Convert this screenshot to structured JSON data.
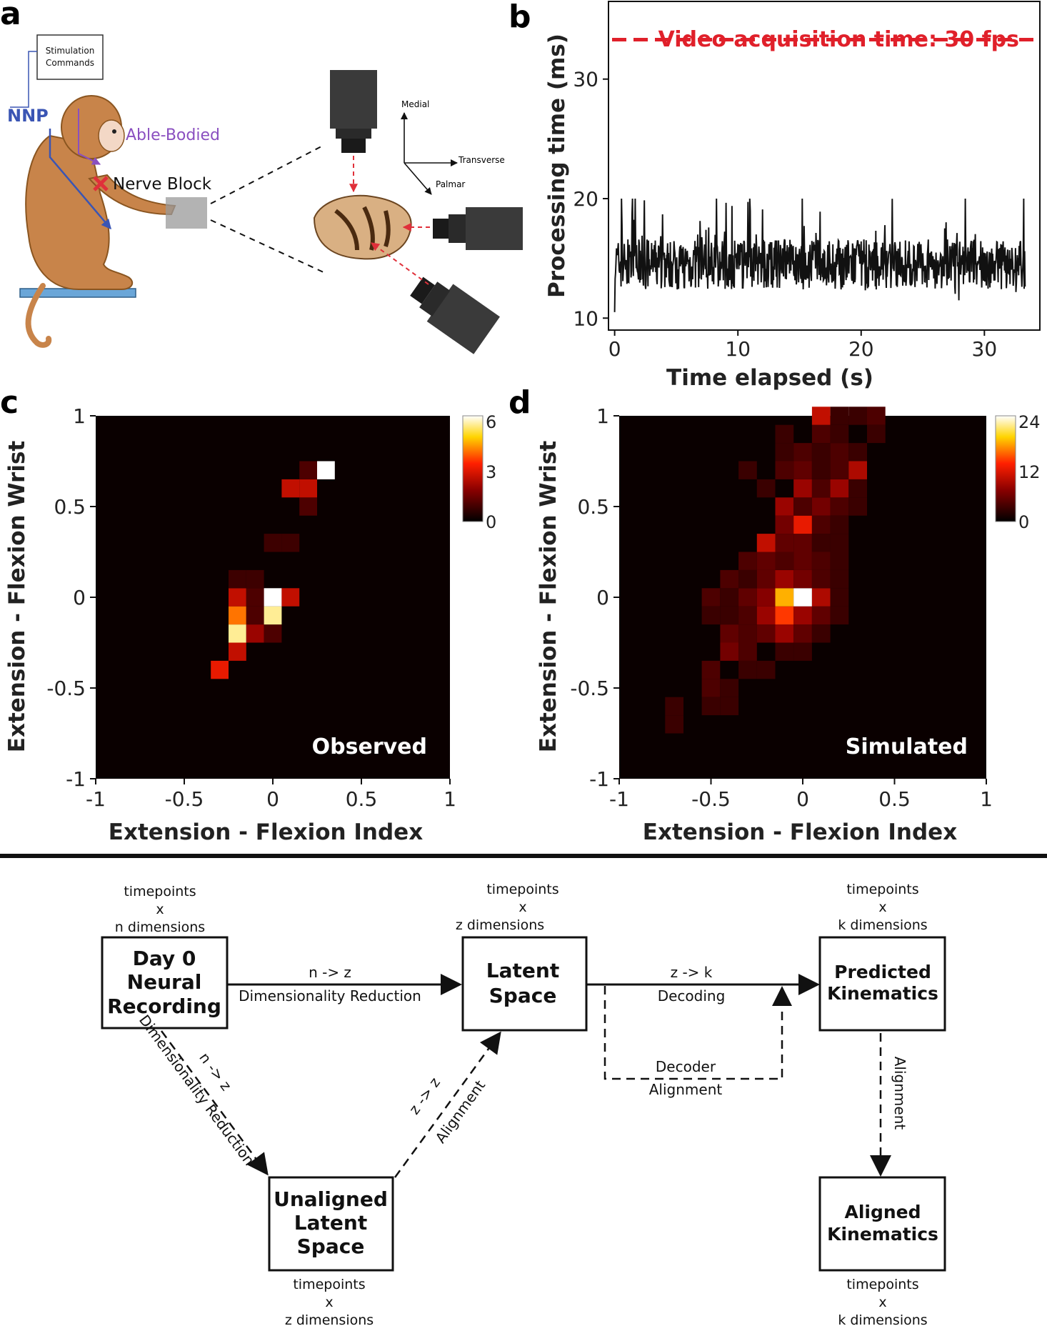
{
  "panel_labels": {
    "a": "a",
    "b": "b",
    "c": "c",
    "d": "d"
  },
  "panel_a": {
    "stim_box": [
      "Stimulation",
      "Commands"
    ],
    "nnp_label": "NNP",
    "able_bodied_label": "Able-Bodied",
    "nerve_block_label": "Nerve Block",
    "axis_medial": "Medial",
    "axis_transverse": "Transverse",
    "axis_palmar": "Palmar",
    "colors": {
      "nnp": "#3a55b4",
      "able_bodied": "#8a4fc0",
      "block": "#e0303a",
      "monkey": "#c8844a",
      "camera": "#3a3a3a"
    }
  },
  "chart_data": [
    {
      "type": "line",
      "panel": "b",
      "xlabel": "Time elapsed (s)",
      "ylabel": "Processing time (ms)",
      "xlim": [
        -0.5,
        34.5
      ],
      "ylim": [
        9,
        36.5
      ],
      "xticks": [
        0,
        10,
        20,
        30
      ],
      "yticks": [
        10,
        20,
        30
      ],
      "series": [
        {
          "color": "#111111",
          "x_range": [
            0,
            33.3
          ],
          "approx_mean": 14.5,
          "approx_range": [
            10.5,
            20
          ]
        }
      ],
      "reference_line": {
        "y": 33.3,
        "label": "Video acquisition time: 30 fps",
        "color": "#e0202a",
        "style": "dashed"
      }
    },
    {
      "type": "heatmap",
      "panel": "c",
      "annotation": "Observed",
      "xlabel": "Extension - Flexion Index",
      "ylabel": "Extension - Flexion Wrist",
      "xlim": [
        -1,
        1
      ],
      "ylim": [
        -1,
        1
      ],
      "xticks": [
        "-1",
        "-0.5",
        "0",
        "0.5",
        "1"
      ],
      "yticks": [
        "1",
        "0.5",
        "0",
        "-0.5",
        "-1"
      ],
      "colorbar": {
        "min": 0,
        "max": 6,
        "ticks": [
          "6",
          "3",
          "0"
        ]
      },
      "bin_size": 0.1,
      "cells": [
        {
          "x": -0.3,
          "y": -0.4,
          "v": 3
        },
        {
          "x": -0.2,
          "y": -0.3,
          "v": 2.5
        },
        {
          "x": -0.2,
          "y": -0.2,
          "v": 5.5
        },
        {
          "x": -0.1,
          "y": -0.2,
          "v": 2
        },
        {
          "x": 0.0,
          "y": -0.2,
          "v": 1
        },
        {
          "x": -0.2,
          "y": -0.1,
          "v": 4
        },
        {
          "x": -0.1,
          "y": -0.1,
          "v": 1
        },
        {
          "x": 0.0,
          "y": -0.1,
          "v": 5.5
        },
        {
          "x": -0.2,
          "y": 0.0,
          "v": 2.5
        },
        {
          "x": -0.1,
          "y": 0.0,
          "v": 1
        },
        {
          "x": 0.0,
          "y": 0.0,
          "v": 6
        },
        {
          "x": 0.1,
          "y": 0.0,
          "v": 2.5
        },
        {
          "x": -0.2,
          "y": 0.1,
          "v": 0.8
        },
        {
          "x": -0.1,
          "y": 0.1,
          "v": 0.8
        },
        {
          "x": 0.0,
          "y": 0.3,
          "v": 0.8
        },
        {
          "x": 0.1,
          "y": 0.3,
          "v": 0.8
        },
        {
          "x": 0.2,
          "y": 0.5,
          "v": 1
        },
        {
          "x": 0.1,
          "y": 0.6,
          "v": 2.5
        },
        {
          "x": 0.2,
          "y": 0.6,
          "v": 2.5
        },
        {
          "x": 0.2,
          "y": 0.7,
          "v": 1
        },
        {
          "x": 0.3,
          "y": 0.7,
          "v": 6
        }
      ]
    },
    {
      "type": "heatmap",
      "panel": "d",
      "annotation": "Simulated",
      "xlabel": "Extension - Flexion Index",
      "ylabel": "Extension - Flexion Wrist",
      "xlim": [
        -1,
        1
      ],
      "ylim": [
        -1,
        1
      ],
      "xticks": [
        "-1",
        "-0.5",
        "0",
        "0.5",
        "1"
      ],
      "yticks": [
        "1",
        "0.5",
        "0",
        "-0.5",
        "-1"
      ],
      "colorbar": {
        "min": 0,
        "max": 24,
        "ticks": [
          "24",
          "12",
          "0"
        ]
      },
      "bin_size": 0.1,
      "cells": [
        {
          "x": -0.7,
          "y": -0.7,
          "v": 3
        },
        {
          "x": -0.7,
          "y": -0.6,
          "v": 3
        },
        {
          "x": -0.5,
          "y": -0.6,
          "v": 3
        },
        {
          "x": -0.4,
          "y": -0.6,
          "v": 3
        },
        {
          "x": -0.5,
          "y": -0.5,
          "v": 4
        },
        {
          "x": -0.4,
          "y": -0.5,
          "v": 3
        },
        {
          "x": -0.5,
          "y": -0.4,
          "v": 4
        },
        {
          "x": -0.3,
          "y": -0.4,
          "v": 3
        },
        {
          "x": -0.2,
          "y": -0.4,
          "v": 3
        },
        {
          "x": -0.4,
          "y": -0.3,
          "v": 6
        },
        {
          "x": -0.3,
          "y": -0.3,
          "v": 4
        },
        {
          "x": -0.1,
          "y": -0.3,
          "v": 3
        },
        {
          "x": 0.0,
          "y": -0.3,
          "v": 3
        },
        {
          "x": -0.4,
          "y": -0.2,
          "v": 5
        },
        {
          "x": -0.3,
          "y": -0.2,
          "v": 4
        },
        {
          "x": -0.2,
          "y": -0.2,
          "v": 5
        },
        {
          "x": -0.1,
          "y": -0.2,
          "v": 8
        },
        {
          "x": 0.0,
          "y": -0.2,
          "v": 5
        },
        {
          "x": 0.1,
          "y": -0.2,
          "v": 3
        },
        {
          "x": -0.5,
          "y": -0.1,
          "v": 3
        },
        {
          "x": -0.4,
          "y": -0.1,
          "v": 3
        },
        {
          "x": -0.3,
          "y": -0.1,
          "v": 4
        },
        {
          "x": -0.2,
          "y": -0.1,
          "v": 8
        },
        {
          "x": -0.1,
          "y": -0.1,
          "v": 14
        },
        {
          "x": 0.0,
          "y": -0.1,
          "v": 8
        },
        {
          "x": 0.1,
          "y": -0.1,
          "v": 5
        },
        {
          "x": 0.2,
          "y": -0.1,
          "v": 3
        },
        {
          "x": -0.5,
          "y": 0.0,
          "v": 4
        },
        {
          "x": -0.4,
          "y": 0.0,
          "v": 3
        },
        {
          "x": -0.3,
          "y": 0.0,
          "v": 5
        },
        {
          "x": -0.2,
          "y": 0.0,
          "v": 7
        },
        {
          "x": -0.1,
          "y": 0.0,
          "v": 18
        },
        {
          "x": 0.0,
          "y": 0.0,
          "v": 24
        },
        {
          "x": 0.1,
          "y": 0.0,
          "v": 9
        },
        {
          "x": 0.2,
          "y": 0.0,
          "v": 3
        },
        {
          "x": -0.4,
          "y": 0.1,
          "v": 4
        },
        {
          "x": -0.3,
          "y": 0.1,
          "v": 3
        },
        {
          "x": -0.2,
          "y": 0.1,
          "v": 5
        },
        {
          "x": -0.1,
          "y": 0.1,
          "v": 8
        },
        {
          "x": 0.0,
          "y": 0.1,
          "v": 6
        },
        {
          "x": 0.1,
          "y": 0.1,
          "v": 4
        },
        {
          "x": 0.2,
          "y": 0.1,
          "v": 3
        },
        {
          "x": -0.3,
          "y": 0.2,
          "v": 4
        },
        {
          "x": -0.2,
          "y": 0.2,
          "v": 5
        },
        {
          "x": -0.1,
          "y": 0.2,
          "v": 4
        },
        {
          "x": 0.0,
          "y": 0.2,
          "v": 5
        },
        {
          "x": 0.1,
          "y": 0.2,
          "v": 4
        },
        {
          "x": 0.2,
          "y": 0.2,
          "v": 3
        },
        {
          "x": -0.2,
          "y": 0.3,
          "v": 10
        },
        {
          "x": -0.1,
          "y": 0.3,
          "v": 5
        },
        {
          "x": 0.0,
          "y": 0.3,
          "v": 5
        },
        {
          "x": 0.1,
          "y": 0.3,
          "v": 3
        },
        {
          "x": 0.2,
          "y": 0.3,
          "v": 3
        },
        {
          "x": -0.1,
          "y": 0.4,
          "v": 6
        },
        {
          "x": 0.0,
          "y": 0.4,
          "v": 12
        },
        {
          "x": 0.1,
          "y": 0.4,
          "v": 4
        },
        {
          "x": 0.2,
          "y": 0.4,
          "v": 3
        },
        {
          "x": -0.1,
          "y": 0.5,
          "v": 8
        },
        {
          "x": 0.0,
          "y": 0.5,
          "v": 4
        },
        {
          "x": 0.1,
          "y": 0.5,
          "v": 6
        },
        {
          "x": 0.2,
          "y": 0.5,
          "v": 4
        },
        {
          "x": 0.3,
          "y": 0.5,
          "v": 3
        },
        {
          "x": -0.2,
          "y": 0.6,
          "v": 3
        },
        {
          "x": 0.0,
          "y": 0.6,
          "v": 8
        },
        {
          "x": 0.1,
          "y": 0.6,
          "v": 4
        },
        {
          "x": 0.2,
          "y": 0.6,
          "v": 8
        },
        {
          "x": 0.3,
          "y": 0.6,
          "v": 3
        },
        {
          "x": -0.3,
          "y": 0.7,
          "v": 3
        },
        {
          "x": -0.1,
          "y": 0.7,
          "v": 4
        },
        {
          "x": 0.0,
          "y": 0.7,
          "v": 5
        },
        {
          "x": 0.1,
          "y": 0.7,
          "v": 3
        },
        {
          "x": 0.2,
          "y": 0.7,
          "v": 4
        },
        {
          "x": 0.3,
          "y": 0.7,
          "v": 9
        },
        {
          "x": -0.1,
          "y": 0.8,
          "v": 3
        },
        {
          "x": 0.0,
          "y": 0.8,
          "v": 4
        },
        {
          "x": 0.1,
          "y": 0.8,
          "v": 3
        },
        {
          "x": 0.2,
          "y": 0.8,
          "v": 4
        },
        {
          "x": 0.3,
          "y": 0.8,
          "v": 3
        },
        {
          "x": -0.1,
          "y": 0.9,
          "v": 3
        },
        {
          "x": 0.1,
          "y": 0.9,
          "v": 4
        },
        {
          "x": 0.2,
          "y": 0.9,
          "v": 3
        },
        {
          "x": 0.4,
          "y": 0.9,
          "v": 3
        },
        {
          "x": 0.1,
          "y": 1.0,
          "v": 10
        },
        {
          "x": 0.2,
          "y": 1.0,
          "v": 3
        },
        {
          "x": 0.3,
          "y": 1.0,
          "v": 3
        },
        {
          "x": 0.4,
          "y": 1.0,
          "v": 4
        }
      ]
    }
  ],
  "diagram": {
    "nodes": {
      "day0": {
        "label": [
          "Day 0",
          "Neural",
          "Recording"
        ],
        "dims": [
          "timepoints",
          "x",
          "n dimensions"
        ]
      },
      "latent": {
        "label": [
          "Latent",
          "Space"
        ],
        "dims": [
          "timepoints",
          "x",
          "z dimensions"
        ]
      },
      "predicted": {
        "label": [
          "Predicted",
          "Kinematics"
        ],
        "dims": [
          "timepoints",
          "x",
          "k dimensions"
        ]
      },
      "unaligned": {
        "label": [
          "Unaligned",
          "Latent",
          "Space"
        ],
        "dims": [
          "timepoints",
          "x",
          "z dimensions"
        ]
      },
      "aligned": {
        "label": [
          "Aligned",
          "Kinematics"
        ],
        "dims": [
          "timepoints",
          "x",
          "k dimensions"
        ]
      }
    },
    "edges": {
      "day0_latent": [
        "n -> z",
        "Dimensionality Reduction"
      ],
      "latent_predicted": [
        "z -> k",
        "Decoding"
      ],
      "decoder_alignment": [
        "Decoder",
        "Alignment"
      ],
      "day0_unaligned": [
        "n -> z",
        "Dimensionality Reduction"
      ],
      "unaligned_latent": [
        "z -> z",
        "Alignment"
      ],
      "predicted_aligned": [
        "Alignment"
      ]
    }
  }
}
